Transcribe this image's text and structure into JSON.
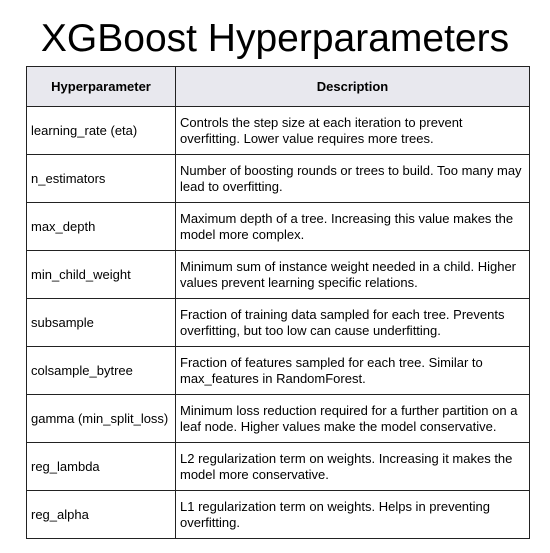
{
  "title": "XGBoost Hyperparameters",
  "table": {
    "headers": [
      "Hyperparameter",
      "Description"
    ],
    "rows": [
      {
        "param": "learning_rate (eta)",
        "description": "Controls the step size at each iteration to prevent overfitting. Lower value requires more trees."
      },
      {
        "param": "n_estimators",
        "description": "Number of boosting rounds or trees to build. Too many may lead to overfitting."
      },
      {
        "param": "max_depth",
        "description": "Maximum depth of a tree. Increasing this value makes the model more complex."
      },
      {
        "param": "min_child_weight",
        "description": "Minimum sum of instance weight needed in a child. Higher values prevent learning specific relations."
      },
      {
        "param": "subsample",
        "description": "Fraction of training data sampled for each tree. Prevents overfitting, but too low can cause underfitting."
      },
      {
        "param": "colsample_bytree",
        "description": "Fraction of features sampled for each tree. Similar to max_features in RandomForest."
      },
      {
        "param": "gamma (min_split_loss)",
        "description": "Minimum loss reduction required for a further partition on a leaf node. Higher values make the model conservative."
      },
      {
        "param": "reg_lambda",
        "description": "L2 regularization term on weights. Increasing it makes the model more conservative."
      },
      {
        "param": "reg_alpha",
        "description": "L1 regularization term on weights. Helps in preventing overfitting."
      }
    ]
  }
}
